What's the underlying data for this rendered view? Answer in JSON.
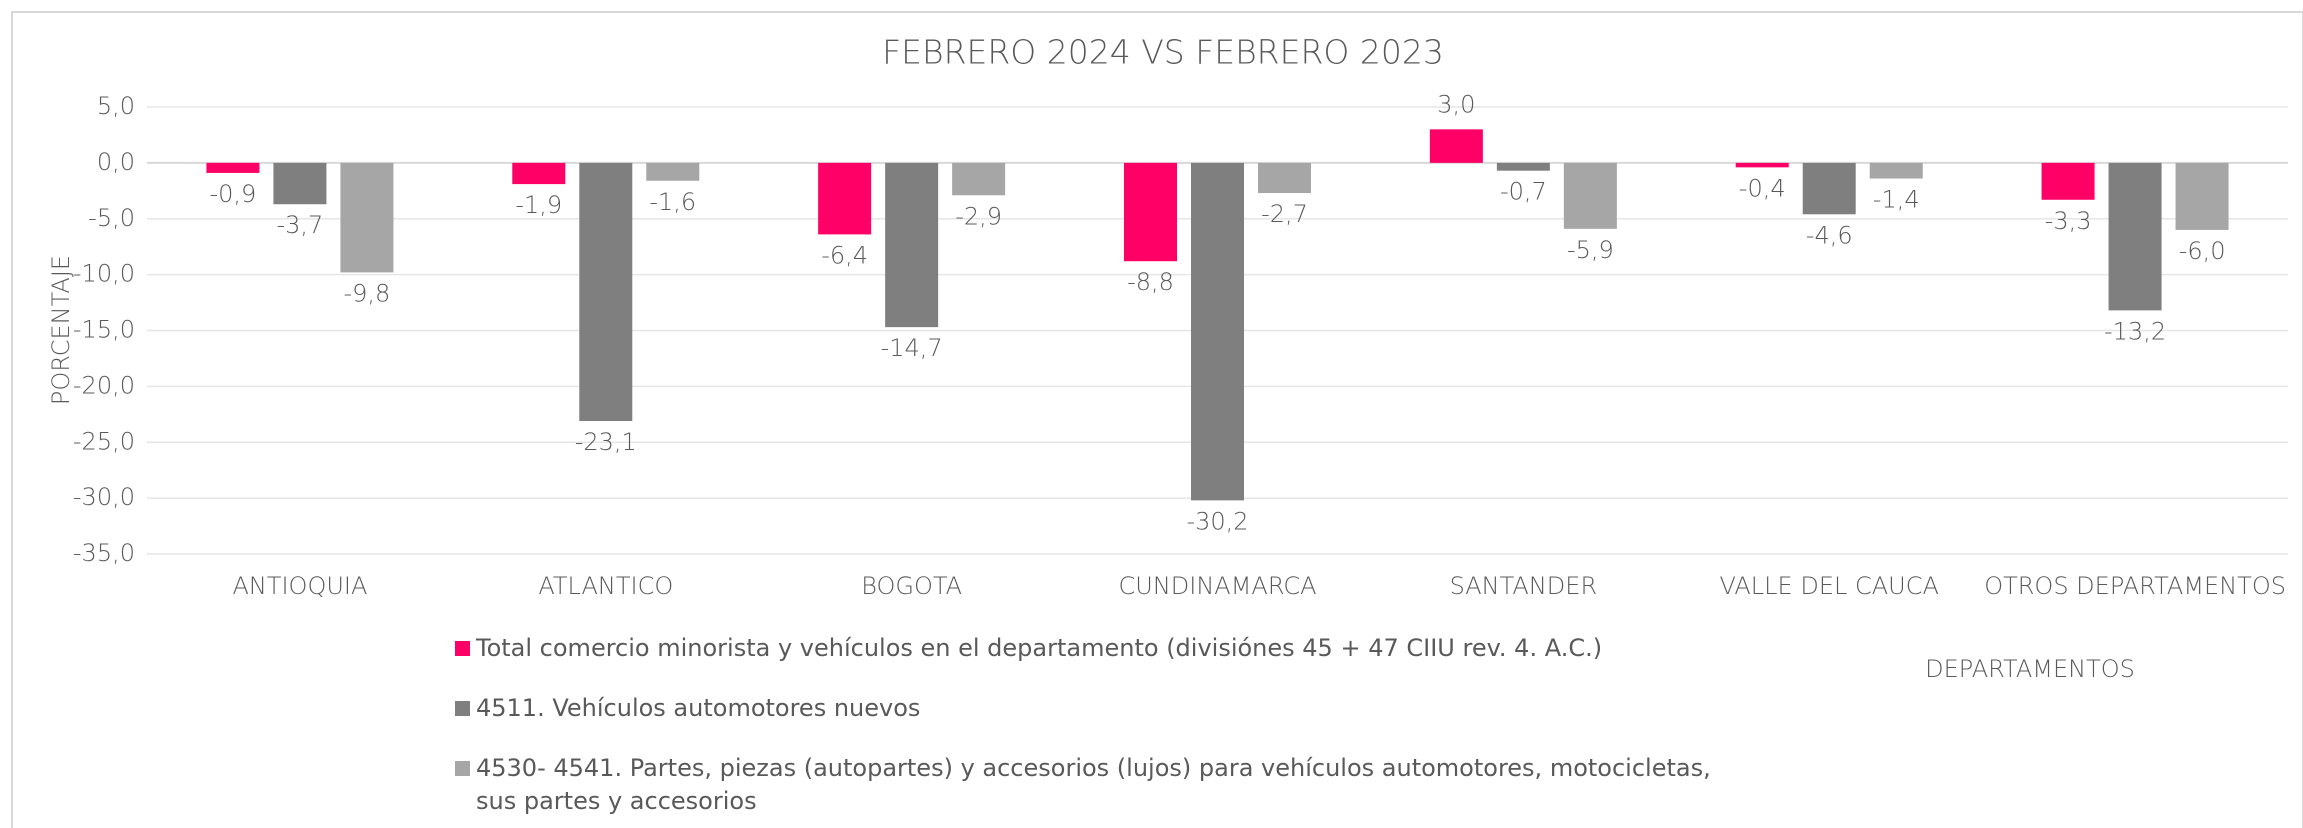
{
  "chart_data": {
    "type": "bar",
    "title": "FEBRERO 2024 VS FEBRERO 2023",
    "y_label": "PORCENTAJE",
    "x_label": "DEPARTAMENTOS",
    "categories": [
      "ANTIOQUIA",
      "ATLANTICO",
      "BOGOTA",
      "CUNDINAMARCA",
      "SANTANDER",
      "VALLE DEL CAUCA",
      "OTROS DEPARTAMENTOS"
    ],
    "series": [
      {
        "name": "Total comercio minorista y vehículos en el departamento (divisiónes 45 + 47  CIIU rev. 4. A.C.)",
        "color": "#ff0066",
        "values": [
          -0.9,
          -1.9,
          -6.4,
          -8.8,
          3.0,
          -0.4,
          -3.3
        ],
        "value_labels": [
          "-0,9",
          "-1,9",
          "-6,4",
          "-8,8",
          "3,0",
          "-0,4",
          "-3,3"
        ]
      },
      {
        "name": "4511. Vehículos automotores nuevos",
        "color": "#7f7f7f",
        "values": [
          -3.7,
          -23.1,
          -14.7,
          -30.2,
          -0.7,
          -4.6,
          -13.2
        ],
        "value_labels": [
          "-3,7",
          "-23,1",
          "-14,7",
          "-30,2",
          "-0,7",
          "-4,6",
          "-13,2"
        ]
      },
      {
        "name": "4530- 4541. Partes, piezas (autopartes) y accesorios (lujos) para vehículos automotores, motocicletas, sus partes y accesorios",
        "color": "#a6a6a6",
        "values": [
          -9.8,
          -1.6,
          -2.9,
          -2.7,
          -5.9,
          -1.4,
          -6.0
        ],
        "value_labels": [
          "-9,8",
          "-1,6",
          "-2,9",
          "-2,7",
          "-5,9",
          "-1,4",
          "-6,0"
        ]
      }
    ],
    "ylim": [
      -35,
      5
    ],
    "yticks": [
      {
        "value": 5,
        "label": "5,0"
      },
      {
        "value": 0,
        "label": "0,0"
      },
      {
        "value": -5,
        "label": "-5,0"
      },
      {
        "value": -10,
        "label": "-10,0"
      },
      {
        "value": -15,
        "label": "-15,0"
      },
      {
        "value": -20,
        "label": "-20,0"
      },
      {
        "value": -25,
        "label": "-25,0"
      },
      {
        "value": -30,
        "label": "-30,0"
      },
      {
        "value": -35,
        "label": "-35,0"
      }
    ],
    "grid": true,
    "legend": "bottom"
  }
}
